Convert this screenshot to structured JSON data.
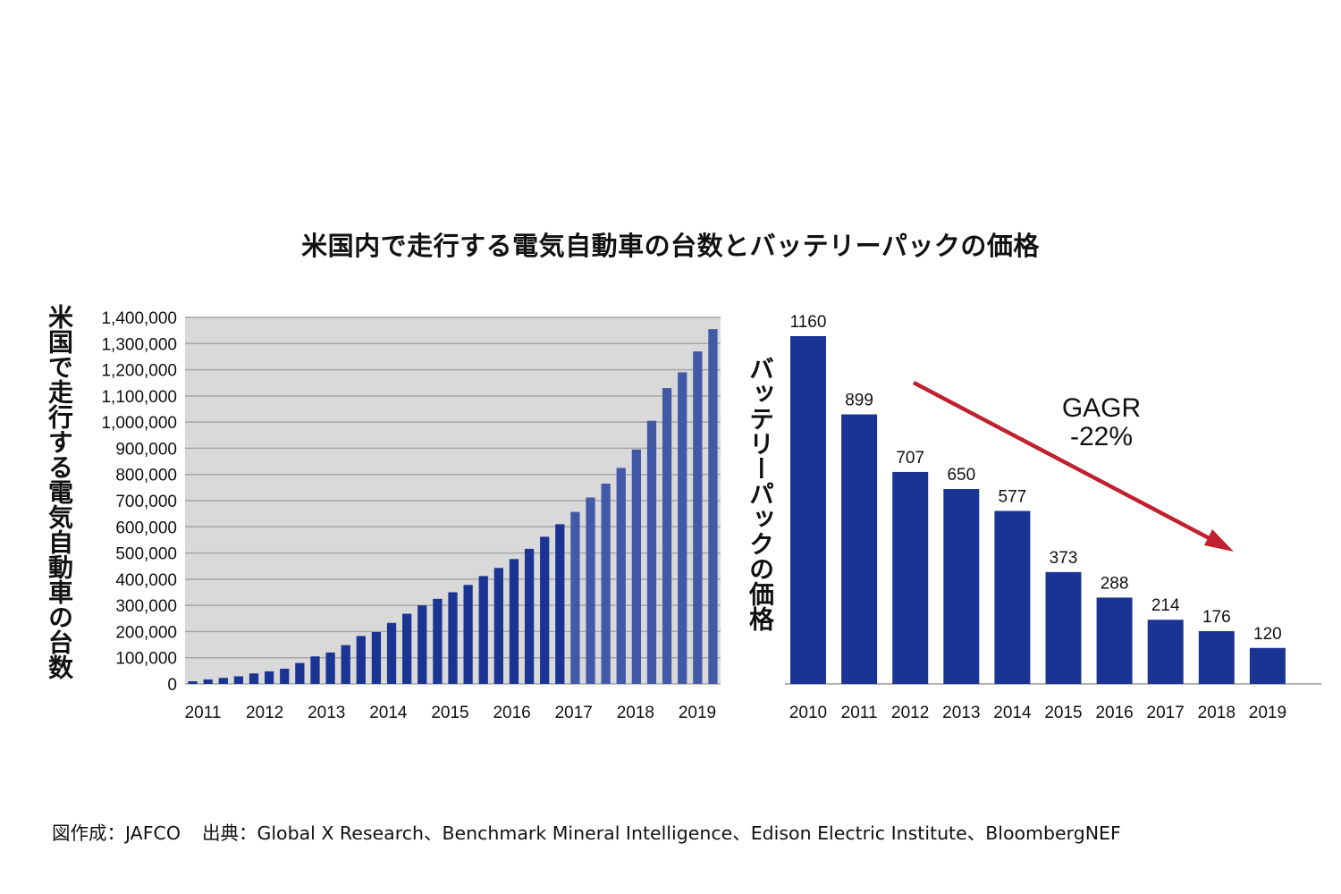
{
  "title": "米国内で走行する電気自動車の台数とバッテリーパックの価格",
  "footer": {
    "credit": "図作成：JAFCO",
    "source": "出典：Global X Research、Benchmark Mineral Intelligence、Edison Electric Institute、BloombergNEF"
  },
  "colors": {
    "bar_dark": "#1a3494",
    "bar_light": "#4259a8",
    "plot_bg": "#d9d9d9",
    "grid": "#a6a6a6",
    "arrow": "#c0202f"
  },
  "chart_data": [
    {
      "type": "bar",
      "ylabel": "米国で走行する電気自動車の台数",
      "ylim": [
        0,
        1400000
      ],
      "yticks": [
        0,
        100000,
        200000,
        300000,
        400000,
        500000,
        600000,
        700000,
        800000,
        900000,
        1000000,
        1100000,
        1200000,
        1300000,
        1400000
      ],
      "ytick_labels": [
        "0",
        "100,000",
        "200,000",
        "300,000",
        "400,000",
        "500,000",
        "600,000",
        "700,000",
        "800,000",
        "900,000",
        "1,000,000",
        "1,100,000",
        "1,200,000",
        "1,300,000",
        "1,400,000"
      ],
      "xtick_labels": [
        "2011",
        "2012",
        "2013",
        "2014",
        "2015",
        "2016",
        "2017",
        "2018",
        "2019"
      ],
      "grid": true,
      "values": [
        10000,
        17000,
        23000,
        29000,
        40000,
        48000,
        58000,
        80000,
        105000,
        120000,
        148000,
        183000,
        198000,
        233000,
        268000,
        300000,
        325000,
        350000,
        378000,
        412000,
        443000,
        477000,
        516000,
        562000,
        610000,
        657000,
        712000,
        765000,
        825000,
        895000,
        1005000,
        1130000,
        1190000,
        1270000,
        1355000
      ]
    },
    {
      "type": "bar",
      "ylabel": "バッテリーパックの価格",
      "categories": [
        "2010",
        "2011",
        "2012",
        "2013",
        "2014",
        "2015",
        "2016",
        "2017",
        "2018",
        "2019"
      ],
      "values": [
        1160,
        899,
        707,
        650,
        577,
        373,
        288,
        214,
        176,
        120
      ],
      "ylim": [
        0,
        1160
      ],
      "grid": false,
      "annotation": {
        "line1": "GAGR",
        "line2": "-22%"
      }
    }
  ]
}
